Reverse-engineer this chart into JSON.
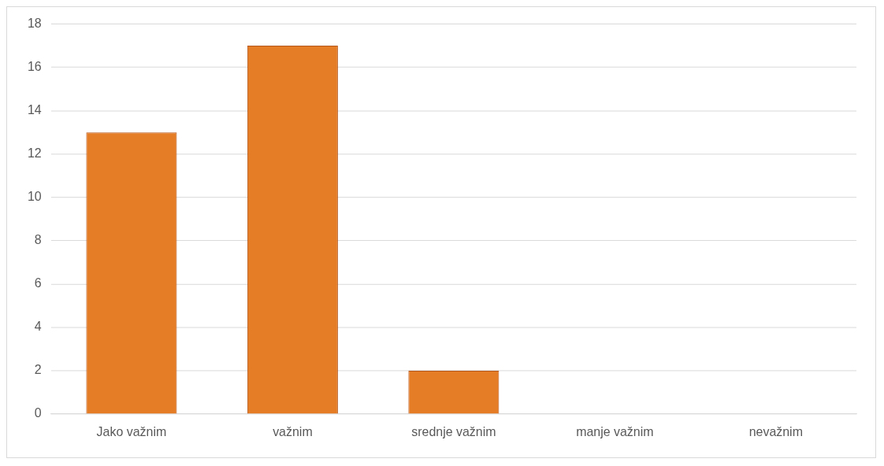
{
  "chart_data": {
    "type": "bar",
    "categories": [
      "Jako važnim",
      "važnim",
      "srednje važnim",
      "manje važnim",
      "nevažnim"
    ],
    "values": [
      13,
      17,
      2,
      0,
      0
    ],
    "color": "#e57c26",
    "ylim": [
      0,
      18
    ],
    "yticks": [
      0,
      2,
      4,
      6,
      8,
      10,
      12,
      14,
      16,
      18
    ],
    "grid": "y",
    "legend": false
  }
}
